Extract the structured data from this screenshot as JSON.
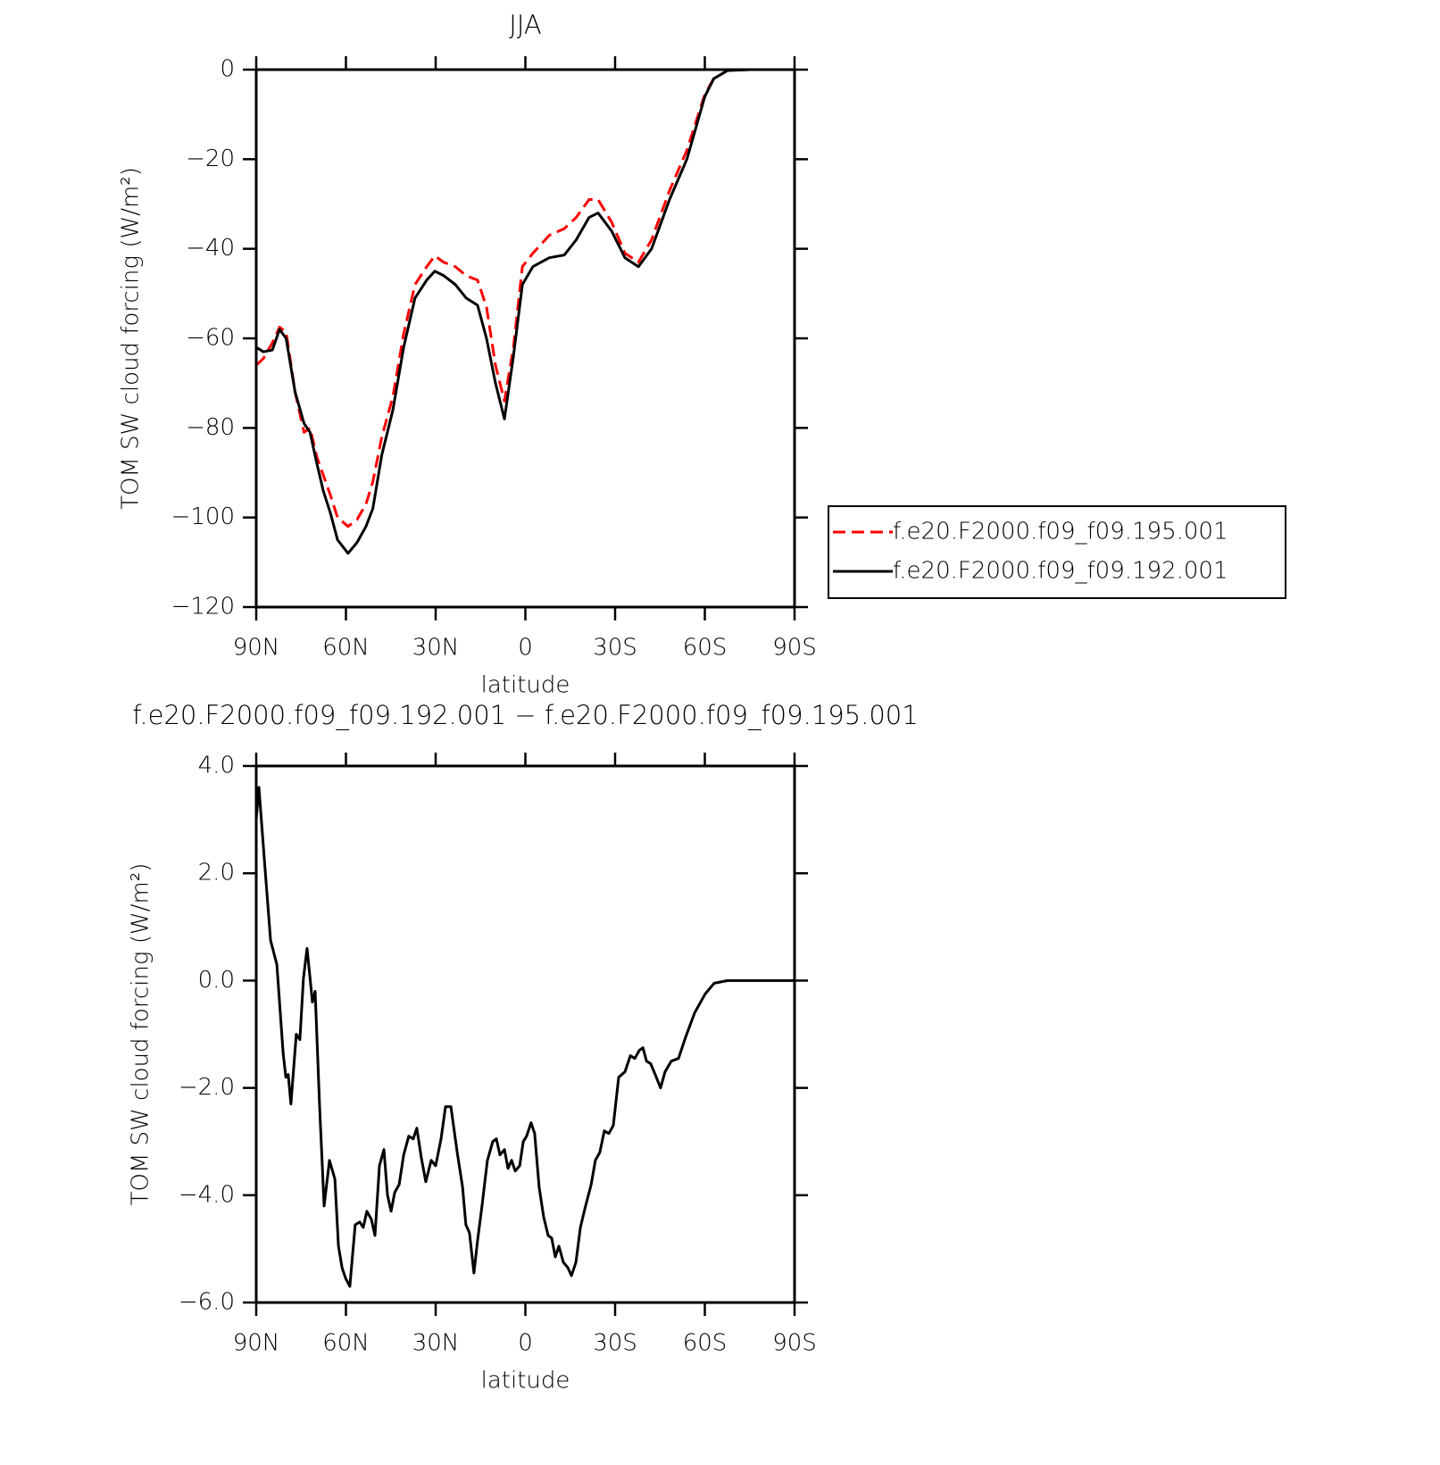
{
  "chart_data": [
    {
      "type": "line",
      "title": "JJA",
      "x_label": "latitude",
      "y_label": "TOM SW cloud forcing (W/m²)",
      "x": [
        90,
        87.6,
        84.6,
        82.2,
        80,
        77,
        74,
        72,
        69.7,
        67.6,
        65.2,
        62.8,
        59.3,
        56.3,
        53.3,
        51,
        48,
        44.3,
        40.7,
        36.9,
        33,
        30.3,
        27.3,
        23.4,
        19.8,
        16,
        13,
        10,
        7,
        4,
        1,
        -2.5,
        -8,
        -13,
        -17,
        -21.3,
        -24.3,
        -28.8,
        -33.3,
        -37.8,
        -42.2,
        -48.2,
        -54,
        -60,
        -63,
        -67.6,
        -75,
        -90
      ],
      "series": [
        {
          "name": "f.e20.F2000.f09_f09.195.001",
          "color": "#ff0000",
          "dashed": true,
          "values": [
            -66,
            -64.5,
            -61,
            -57.5,
            -58.6,
            -72,
            -81,
            -80,
            -86.5,
            -90.5,
            -95,
            -100,
            -102,
            -100.5,
            -97,
            -92,
            -82,
            -73,
            -59,
            -48,
            -44,
            -41.6,
            -43,
            -44,
            -46,
            -47,
            -53,
            -66,
            -74,
            -62,
            -44,
            -41,
            -37,
            -35.5,
            -33,
            -29,
            -29,
            -34,
            -41,
            -43,
            -38,
            -27,
            -18,
            -5.5,
            -2,
            -0.2,
            0,
            0
          ]
        },
        {
          "name": "f.e20.F2000.f09_f09.192.001",
          "color": "#000000",
          "dashed": false,
          "values": [
            -62,
            -63,
            -62.6,
            -58,
            -60,
            -72,
            -79,
            -81,
            -88,
            -94,
            -99,
            -105,
            -108,
            -105.6,
            -102,
            -98,
            -86,
            -76,
            -62,
            -51,
            -47,
            -45,
            -46,
            -48,
            -51,
            -52.6,
            -60,
            -70,
            -78,
            -64,
            -48,
            -44,
            -42,
            -41.4,
            -38,
            -33,
            -32,
            -36,
            -42,
            -44,
            -40,
            -29,
            -20,
            -6,
            -2,
            -0.2,
            0,
            0
          ]
        }
      ],
      "xlim": [
        90,
        -90
      ],
      "xticks": [
        {
          "value": 90,
          "label": "90N"
        },
        {
          "value": 60,
          "label": "60N"
        },
        {
          "value": 30,
          "label": "30N"
        },
        0,
        {
          "value": -30,
          "label": "30S"
        },
        {
          "value": -60,
          "label": "60S"
        },
        {
          "value": -90,
          "label": "90S"
        }
      ],
      "ylim": [
        -120,
        0
      ],
      "yticks": [
        0,
        {
          "value": -20,
          "label": "−20"
        },
        {
          "value": -40,
          "label": "−40"
        },
        {
          "value": -60,
          "label": "−60"
        },
        {
          "value": -80,
          "label": "−80"
        },
        {
          "value": -100,
          "label": "−100"
        },
        {
          "value": -120,
          "label": "−120"
        }
      ],
      "legend": "right"
    },
    {
      "type": "line",
      "title": "f.e20.F2000.f09_f09.192.001 − f.e20.F2000.f09_f09.195.001",
      "x_label": "latitude",
      "y_label": "TOM SW cloud forcing (W/m²)",
      "x": [
        90,
        89.1,
        87,
        85.2,
        83.1,
        81,
        80.1,
        79.3,
        78.4,
        76.6,
        75.4,
        74.2,
        73,
        71.2,
        70.3,
        68.8,
        67.3,
        65.5,
        63.7,
        62.5,
        61.3,
        60.1,
        58.7,
        56.9,
        55.4,
        54.2,
        53,
        51.5,
        50.3,
        48.8,
        47.3,
        46.1,
        44.9,
        43.7,
        42.2,
        40.7,
        39,
        37.5,
        36.3,
        34.8,
        33.3,
        31.5,
        30,
        28.2,
        26.7,
        24.9,
        22.8,
        21,
        19.9,
        18.7,
        17.2,
        16,
        14.5,
        12.7,
        10.9,
        9.7,
        8.5,
        7,
        5.8,
        4.6,
        3.4,
        1.9,
        0.7,
        -0.4,
        -1.9,
        -3.1,
        -4.6,
        -6.1,
        -7.6,
        -8.8,
        -10,
        -11.2,
        -12.7,
        -14.2,
        -15.4,
        -16.9,
        -18.4,
        -19.9,
        -22,
        -23.4,
        -24.9,
        -26.4,
        -27.9,
        -29.4,
        -31.2,
        -33.3,
        -35.1,
        -36.6,
        -38.1,
        -39.3,
        -40.5,
        -41.9,
        -43.4,
        -45.2,
        -46.7,
        -48.8,
        -51.2,
        -53.6,
        -56.6,
        -60.1,
        -63.1,
        -67.6,
        -90
      ],
      "series": [
        {
          "color": "#000000",
          "values": [
            3,
            3.6,
            2.05,
            0.75,
            0.3,
            -1.35,
            -1.8,
            -1.75,
            -2.3,
            -1.0,
            -1.1,
            0.05,
            0.6,
            -0.4,
            -0.2,
            -2.35,
            -4.2,
            -3.35,
            -3.7,
            -4.95,
            -5.35,
            -5.55,
            -5.7,
            -4.55,
            -4.5,
            -4.6,
            -4.3,
            -4.45,
            -4.75,
            -3.45,
            -3.15,
            -4.0,
            -4.3,
            -3.95,
            -3.8,
            -3.25,
            -2.9,
            -2.95,
            -2.75,
            -3.3,
            -3.75,
            -3.35,
            -3.45,
            -2.95,
            -2.35,
            -2.35,
            -3.2,
            -3.85,
            -4.55,
            -4.7,
            -5.45,
            -4.85,
            -4.2,
            -3.35,
            -3.0,
            -2.95,
            -3.25,
            -3.15,
            -3.5,
            -3.35,
            -3.55,
            -3.45,
            -3.0,
            -2.9,
            -2.65,
            -2.85,
            -3.85,
            -4.4,
            -4.75,
            -4.8,
            -5.15,
            -4.95,
            -5.25,
            -5.35,
            -5.5,
            -5.25,
            -4.6,
            -4.25,
            -3.8,
            -3.35,
            -3.2,
            -2.8,
            -2.85,
            -2.7,
            -1.8,
            -1.7,
            -1.4,
            -1.45,
            -1.3,
            -1.25,
            -1.5,
            -1.55,
            -1.75,
            -2.0,
            -1.7,
            -1.5,
            -1.45,
            -1.05,
            -0.6,
            -0.25,
            -0.05,
            0,
            0
          ]
        }
      ],
      "xlim": [
        90,
        -90
      ],
      "xticks": [
        {
          "value": 90,
          "label": "90N"
        },
        {
          "value": 60,
          "label": "60N"
        },
        {
          "value": 30,
          "label": "30N"
        },
        0,
        {
          "value": -30,
          "label": "30S"
        },
        {
          "value": -60,
          "label": "60S"
        },
        {
          "value": -90,
          "label": "90S"
        }
      ],
      "ylim": [
        -6,
        4
      ],
      "yticks": [
        {
          "value": 4,
          "label": "4.0"
        },
        {
          "value": 2,
          "label": "2.0"
        },
        {
          "value": 0,
          "label": "0.0"
        },
        {
          "value": -2,
          "label": "−2.0"
        },
        {
          "value": -4,
          "label": "−4.0"
        },
        {
          "value": -6,
          "label": "−6.0"
        }
      ]
    }
  ]
}
